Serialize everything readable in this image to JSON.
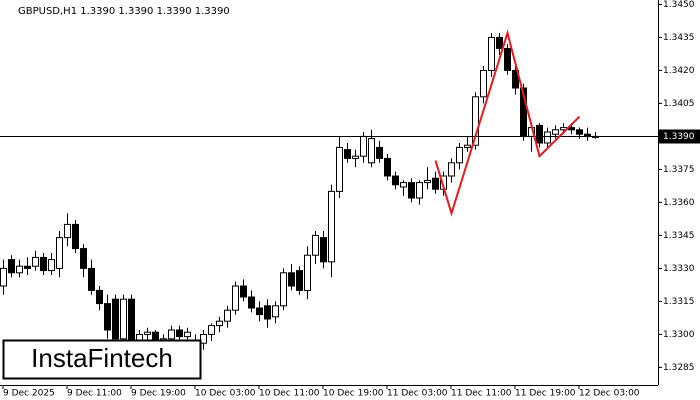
{
  "chart_data": {
    "type": "candlestick",
    "title": "GBPUSD,H1  1.3390 1.3390 1.3390 1.3390",
    "logo": "InstaFintech",
    "categories": [
      "9 Dec 2025",
      null,
      null,
      null,
      null,
      null,
      null,
      null,
      "9 Dec 11:00",
      null,
      null,
      null,
      null,
      null,
      null,
      null,
      "9 Dec 19:00",
      null,
      null,
      null,
      null,
      null,
      null,
      null,
      "10 Dec 03:00",
      null,
      null,
      null,
      null,
      null,
      null,
      null,
      "10 Dec 11:00",
      null,
      null,
      null,
      null,
      null,
      null,
      null,
      "10 Dec 19:00",
      null,
      null,
      null,
      null,
      null,
      null,
      null,
      "11 Dec 03:00",
      null,
      null,
      null,
      null,
      null,
      null,
      null,
      "11 Dec 11:00",
      null,
      null,
      null,
      null,
      null,
      null,
      null,
      "11 Dec 19:00",
      null,
      null,
      null,
      null,
      null,
      null,
      null,
      "12 Dec 03:00",
      null,
      null
    ],
    "open": [
      1.3322,
      1.3334,
      1.3328,
      1.3331,
      1.3331,
      1.3335,
      1.3329,
      1.333,
      1.3344,
      1.335,
      1.3339,
      1.333,
      1.332,
      1.3314,
      1.3316,
      1.3298,
      1.3316,
      1.3297,
      1.33,
      1.3301,
      1.3297,
      1.3298,
      1.3302,
      1.3299,
      1.3297,
      1.3296,
      1.33,
      1.3304,
      1.3306,
      1.3311,
      1.3322,
      1.3317,
      1.3312,
      1.3313,
      1.3308,
      1.3313,
      1.3328,
      1.3329,
      1.332,
      1.3336,
      1.3344,
      1.3333,
      1.3365,
      1.3384,
      1.338,
      1.3381,
      1.3378,
      1.3385,
      1.338,
      1.3372,
      1.3367,
      1.3369,
      1.3362,
      1.3369,
      1.3371,
      1.3366,
      1.3372,
      1.3378,
      1.3385,
      1.3386,
      1.3408,
      1.342,
      1.3435,
      1.343,
      1.342,
      1.3412,
      1.339,
      1.3395,
      1.3387,
      1.3391,
      1.3393,
      1.3394,
      1.3393,
      1.3391,
      1.339
    ],
    "high": [
      1.3334,
      1.3336,
      1.3334,
      1.3335,
      1.3338,
      1.3337,
      1.3337,
      1.3347,
      1.3355,
      1.3352,
      1.3341,
      1.3334,
      1.3322,
      1.3318,
      1.3318,
      1.3318,
      1.3318,
      1.3302,
      1.3303,
      1.3302,
      1.33,
      1.3304,
      1.3304,
      1.3303,
      1.33,
      1.3302,
      1.3305,
      1.3308,
      1.3313,
      1.3324,
      1.3325,
      1.332,
      1.3315,
      1.3316,
      1.3315,
      1.333,
      1.3332,
      1.3331,
      1.334,
      1.3347,
      1.3347,
      1.3368,
      1.339,
      1.3387,
      1.3384,
      1.3392,
      1.3393,
      1.3388,
      1.3382,
      1.3374,
      1.337,
      1.3371,
      1.337,
      1.3376,
      1.3374,
      1.3374,
      1.338,
      1.3387,
      1.339,
      1.341,
      1.3422,
      1.3437,
      1.3437,
      1.3432,
      1.3422,
      1.3414,
      1.3395,
      1.3396,
      1.3394,
      1.3395,
      1.3396,
      1.3396,
      1.3394,
      1.3394,
      1.3392
    ],
    "low": [
      1.3318,
      1.3326,
      1.3326,
      1.3327,
      1.3329,
      1.3327,
      1.3327,
      1.3326,
      1.334,
      1.3337,
      1.3326,
      1.3318,
      1.3311,
      1.3298,
      1.329,
      1.329,
      1.3292,
      1.3294,
      1.3296,
      1.3294,
      1.329,
      1.3294,
      1.3296,
      1.3295,
      1.3294,
      1.3293,
      1.3297,
      1.3301,
      1.3303,
      1.3309,
      1.3315,
      1.331,
      1.3306,
      1.3303,
      1.3305,
      1.3311,
      1.332,
      1.3318,
      1.3316,
      1.3332,
      1.333,
      1.3326,
      1.3362,
      1.3378,
      1.3376,
      1.3378,
      1.3376,
      1.3378,
      1.337,
      1.3366,
      1.3363,
      1.336,
      1.3359,
      1.3366,
      1.3364,
      1.3363,
      1.3369,
      1.3375,
      1.3383,
      1.3384,
      1.3405,
      1.3417,
      1.3427,
      1.3418,
      1.3409,
      1.3388,
      1.3383,
      1.3385,
      1.3385,
      1.3389,
      1.3391,
      1.3391,
      1.3389,
      1.3388,
      1.3389
    ],
    "close": [
      1.333,
      1.3328,
      1.3331,
      1.333,
      1.3335,
      1.3329,
      1.3334,
      1.3344,
      1.335,
      1.3339,
      1.333,
      1.332,
      1.3314,
      1.3302,
      1.3298,
      1.3316,
      1.3295,
      1.33,
      1.3301,
      1.3297,
      1.3298,
      1.3302,
      1.3299,
      1.3301,
      1.3296,
      1.33,
      1.3304,
      1.3306,
      1.3311,
      1.3322,
      1.3317,
      1.3312,
      1.3309,
      1.3307,
      1.3313,
      1.3328,
      1.3322,
      1.332,
      1.3336,
      1.3345,
      1.3333,
      1.3365,
      1.3385,
      1.338,
      1.3381,
      1.339,
      1.3389,
      1.338,
      1.3372,
      1.3368,
      1.3369,
      1.3362,
      1.3369,
      1.337,
      1.3366,
      1.3372,
      1.3378,
      1.3385,
      1.3386,
      1.3408,
      1.342,
      1.3435,
      1.343,
      1.342,
      1.3412,
      1.339,
      1.3394,
      1.3387,
      1.3392,
      1.3393,
      1.3394,
      1.3393,
      1.3391,
      1.339,
      1.339
    ],
    "up_color": "#ffffff",
    "down_color": "#000000",
    "ylim": [
      1.3277,
      1.3452
    ],
    "yticks": [
      {
        "value": 1.345,
        "label": "1.3450"
      },
      {
        "value": 1.3435,
        "label": "1.3435"
      },
      {
        "value": 1.342,
        "label": "1.3420"
      },
      {
        "value": 1.3405,
        "label": "1.3405"
      },
      {
        "value": 1.339,
        "label": "1.3390"
      },
      {
        "value": 1.3375,
        "label": "1.3375"
      },
      {
        "value": 1.336,
        "label": "1.3360"
      },
      {
        "value": 1.3345,
        "label": "1.3345"
      },
      {
        "value": 1.333,
        "label": "1.3330"
      },
      {
        "value": 1.3315,
        "label": "1.3315"
      },
      {
        "value": 1.33,
        "label": "1.3300"
      },
      {
        "value": 1.3285,
        "label": "1.3285"
      }
    ],
    "current_price": {
      "value": 1.339,
      "label": "1.3390"
    },
    "pattern": {
      "color": "#e41a1c",
      "x": [
        54,
        56,
        63,
        67,
        72
      ],
      "values": [
        1.3379,
        1.3355,
        1.3437,
        1.3381,
        1.3399
      ]
    }
  }
}
